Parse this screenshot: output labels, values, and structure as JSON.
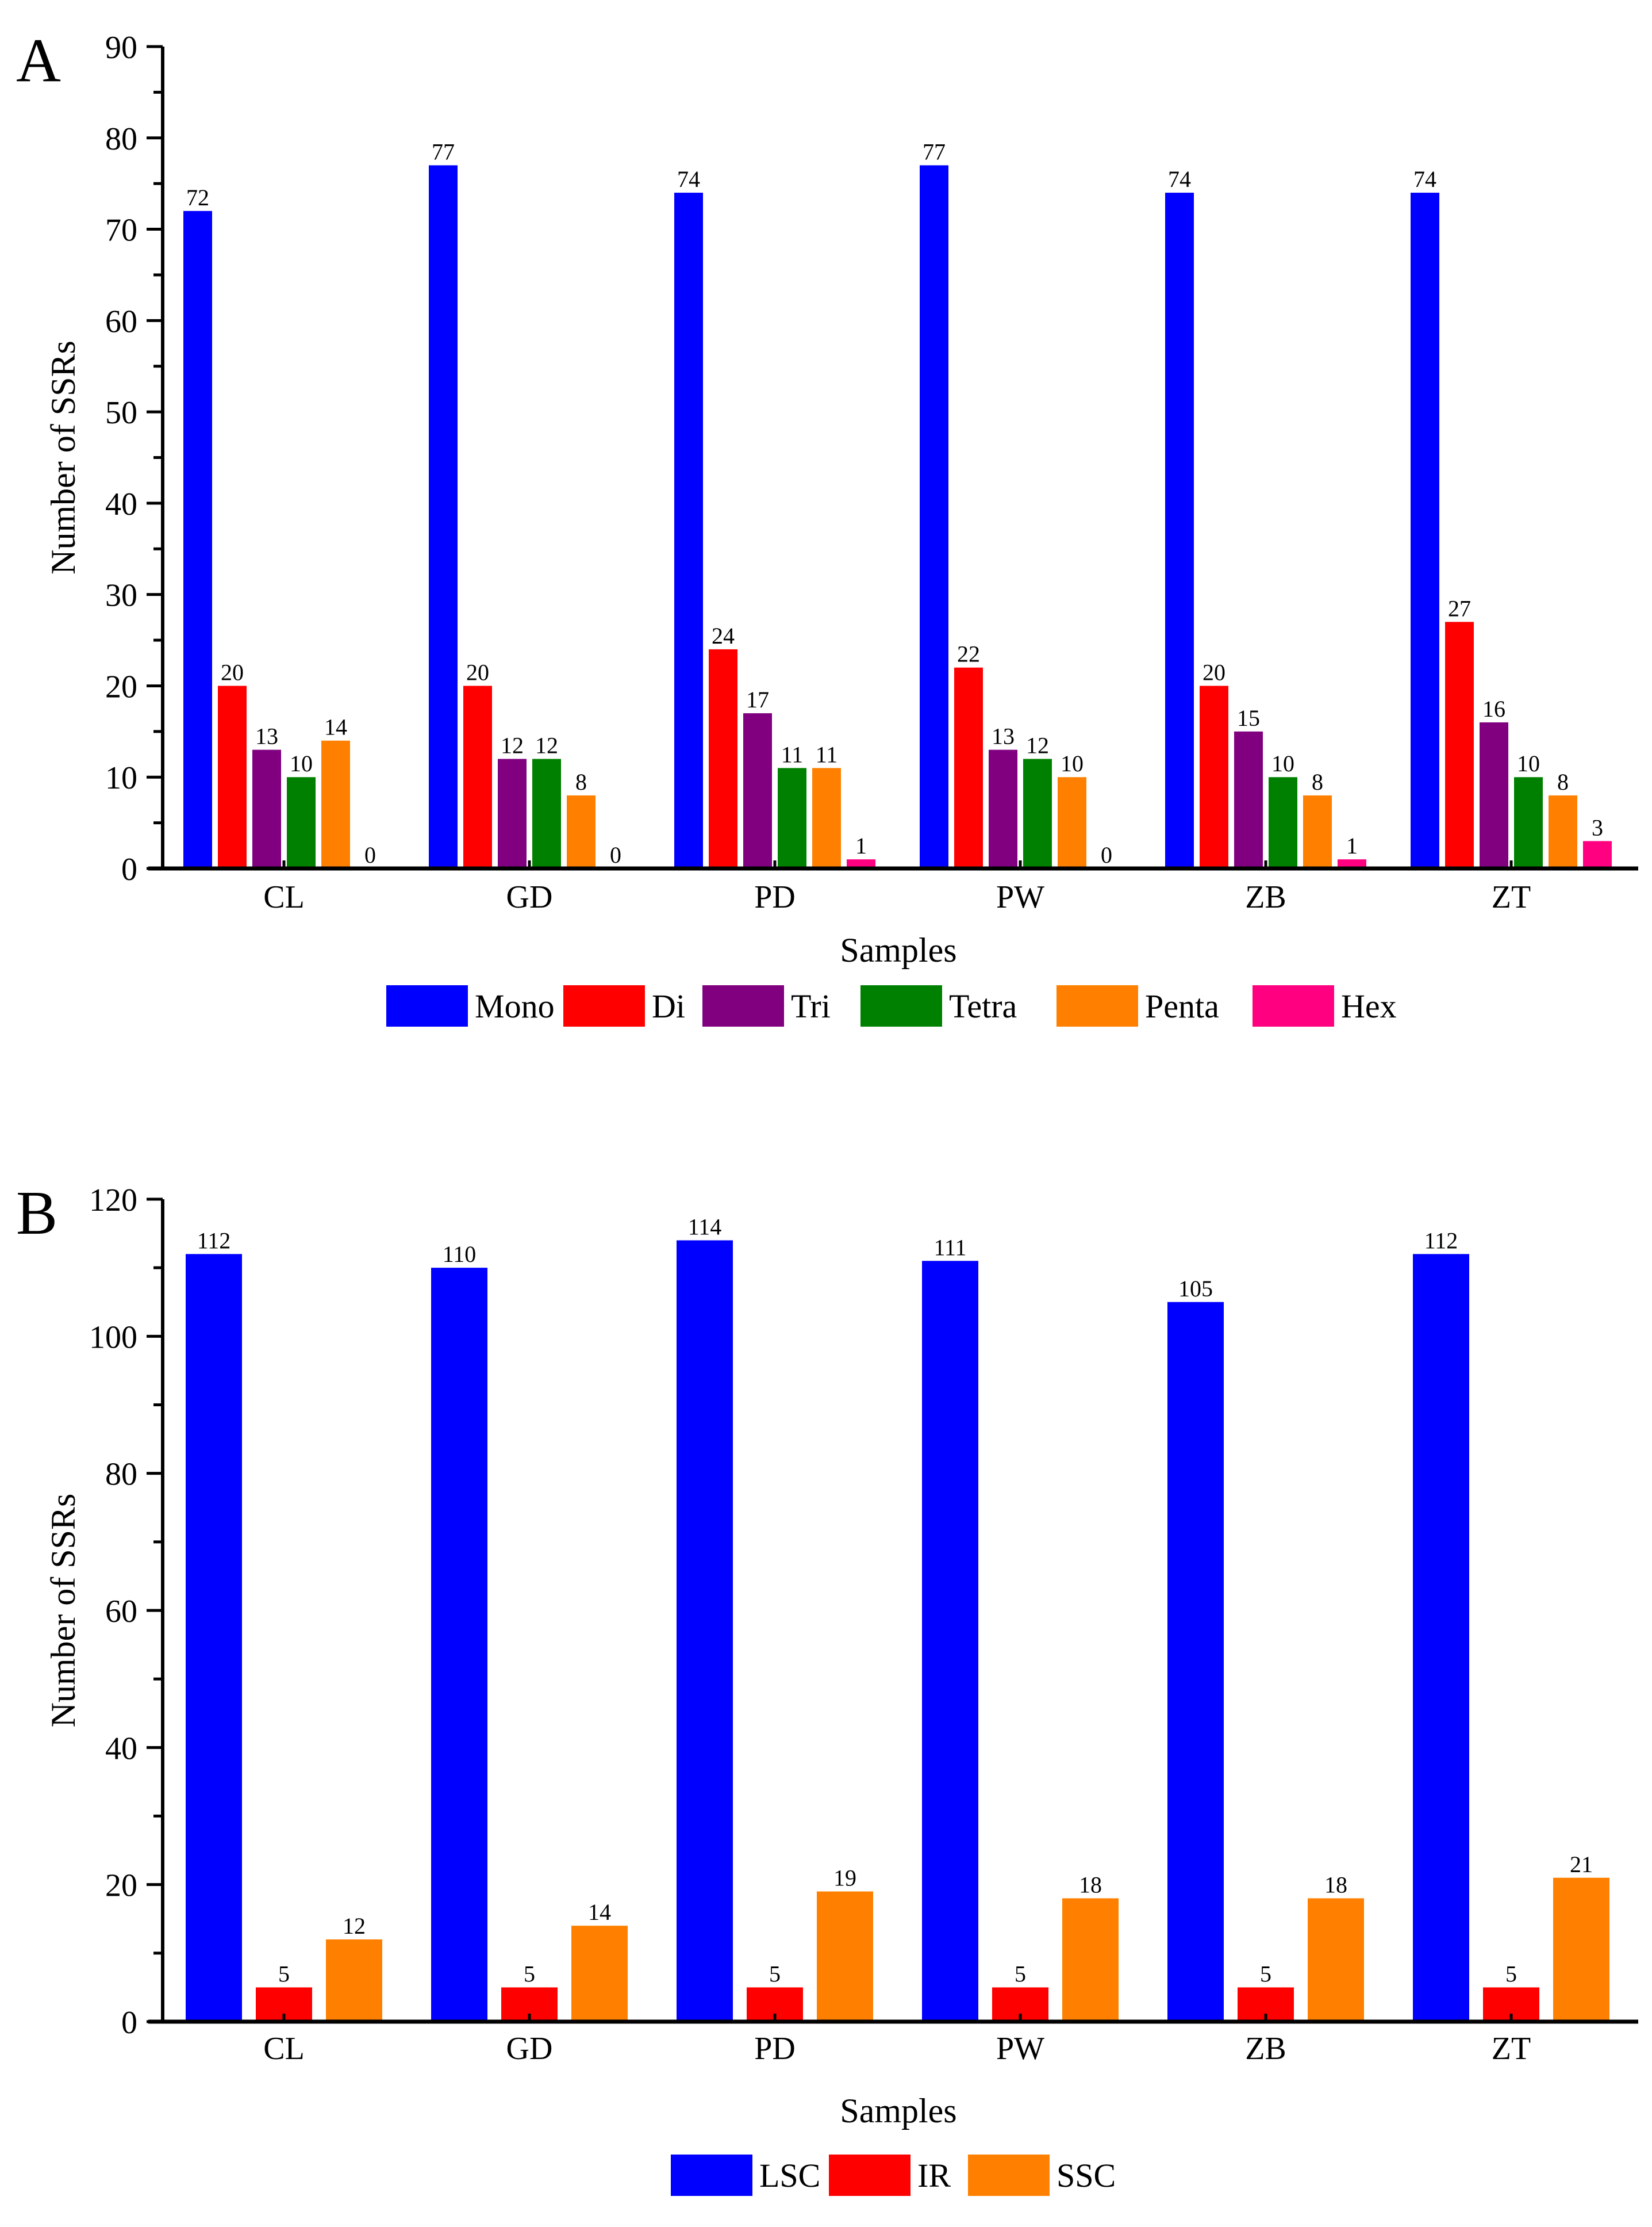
{
  "chart_data": [
    {
      "type": "bar",
      "panel_label": "A",
      "xlabel": "Samples",
      "ylabel": "Number of SSRs",
      "ylim": [
        0,
        90
      ],
      "yticks": [
        0,
        10,
        20,
        30,
        40,
        50,
        60,
        70,
        80,
        90
      ],
      "categories": [
        "CL",
        "GD",
        "PD",
        "PW",
        "ZB",
        "ZT"
      ],
      "legend_position": "bottom",
      "series": [
        {
          "name": "Mono",
          "color": "#0000ff",
          "values": [
            72,
            77,
            74,
            77,
            74,
            74
          ]
        },
        {
          "name": "Di",
          "color": "#ff0000",
          "values": [
            20,
            20,
            24,
            22,
            20,
            27
          ]
        },
        {
          "name": "Tri",
          "color": "#800080",
          "values": [
            13,
            12,
            17,
            13,
            15,
            16
          ]
        },
        {
          "name": "Tetra",
          "color": "#008000",
          "values": [
            10,
            12,
            11,
            12,
            10,
            10
          ]
        },
        {
          "name": "Penta",
          "color": "#ff8000",
          "values": [
            14,
            8,
            11,
            10,
            8,
            8
          ]
        },
        {
          "name": "Hex",
          "color": "#ff0080",
          "values": [
            0,
            0,
            1,
            0,
            1,
            3
          ]
        }
      ]
    },
    {
      "type": "bar",
      "panel_label": "B",
      "xlabel": "Samples",
      "ylabel": "Number of SSRs",
      "ylim": [
        0,
        120
      ],
      "yticks": [
        0,
        20,
        40,
        60,
        80,
        100,
        120
      ],
      "categories": [
        "CL",
        "GD",
        "PD",
        "PW",
        "ZB",
        "ZT"
      ],
      "legend_position": "bottom",
      "series": [
        {
          "name": "LSC",
          "color": "#0000ff",
          "values": [
            112,
            110,
            114,
            111,
            105,
            112
          ]
        },
        {
          "name": "IR",
          "color": "#ff0000",
          "values": [
            5,
            5,
            5,
            5,
            5,
            5
          ]
        },
        {
          "name": "SSC",
          "color": "#ff8000",
          "values": [
            12,
            14,
            19,
            18,
            18,
            21
          ]
        }
      ]
    }
  ]
}
